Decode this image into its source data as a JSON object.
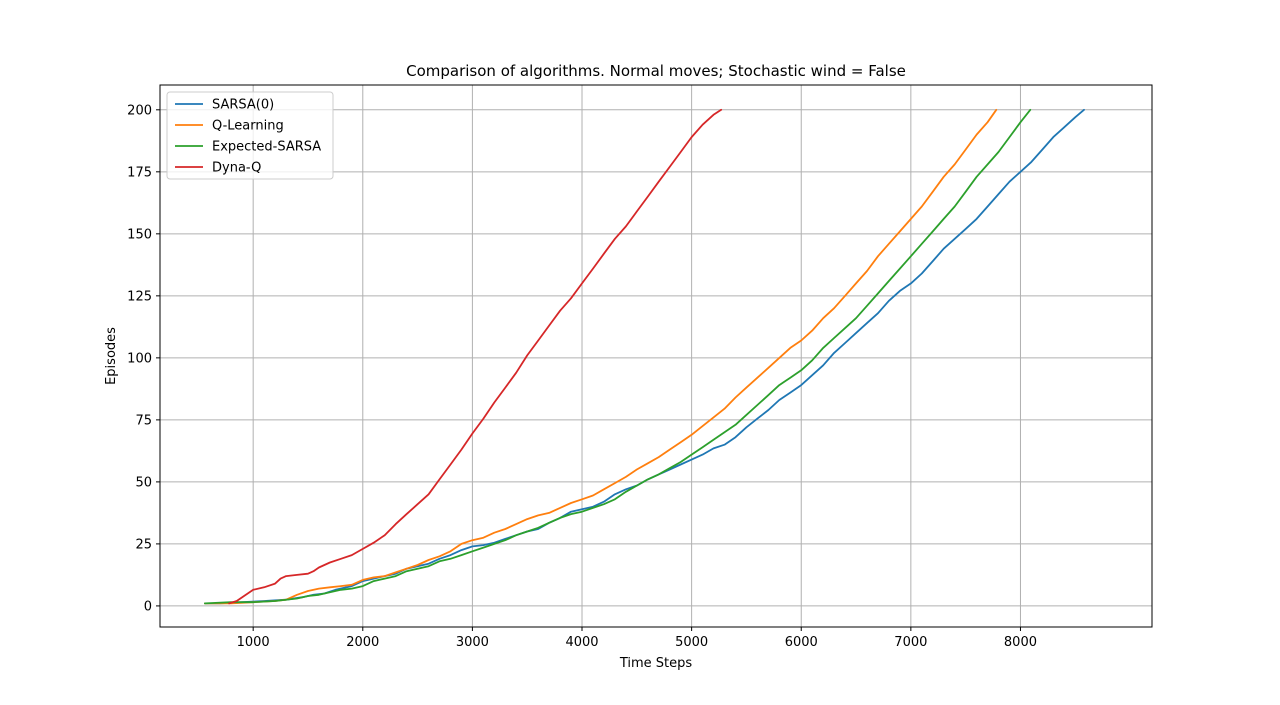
{
  "chart_data": {
    "type": "line",
    "title": "Comparison of algorithms. Normal moves; Stochastic wind = False",
    "xlabel": "Time Steps",
    "ylabel": "Episodes",
    "xlim": [
      150,
      9200
    ],
    "ylim": [
      -8.5,
      210
    ],
    "xticks": [
      1000,
      2000,
      3000,
      4000,
      5000,
      6000,
      7000,
      8000
    ],
    "xtick_labels": [
      "1000",
      "2000",
      "3000",
      "4000",
      "5000",
      "6000",
      "7000",
      "8000"
    ],
    "yticks": [
      0,
      25,
      50,
      75,
      100,
      125,
      150,
      175,
      200
    ],
    "ytick_labels": [
      "0",
      "25",
      "50",
      "75",
      "100",
      "125",
      "150",
      "175",
      "200"
    ],
    "grid": true,
    "legend_position": "top-left",
    "series": [
      {
        "name": "SARSA(0)",
        "color": "#1f77b4",
        "points": [
          [
            560,
            1
          ],
          [
            700,
            1
          ],
          [
            900,
            1.5
          ],
          [
            1100,
            2
          ],
          [
            1300,
            2.5
          ],
          [
            1450,
            3.5
          ],
          [
            1550,
            4.5
          ],
          [
            1650,
            5
          ],
          [
            1750,
            6.5
          ],
          [
            1900,
            8
          ],
          [
            2000,
            10
          ],
          [
            2100,
            11
          ],
          [
            2200,
            12
          ],
          [
            2300,
            13
          ],
          [
            2400,
            15
          ],
          [
            2500,
            16
          ],
          [
            2600,
            17
          ],
          [
            2700,
            19
          ],
          [
            2800,
            20.5
          ],
          [
            2900,
            22.5
          ],
          [
            3000,
            24
          ],
          [
            3100,
            24.5
          ],
          [
            3200,
            25.5
          ],
          [
            3300,
            27
          ],
          [
            3400,
            28.5
          ],
          [
            3500,
            30
          ],
          [
            3600,
            31
          ],
          [
            3700,
            33.5
          ],
          [
            3800,
            35.5
          ],
          [
            3900,
            38
          ],
          [
            4000,
            39
          ],
          [
            4100,
            40
          ],
          [
            4200,
            42
          ],
          [
            4300,
            45
          ],
          [
            4400,
            47
          ],
          [
            4500,
            48.5
          ],
          [
            4600,
            51
          ],
          [
            4700,
            53
          ],
          [
            4800,
            55
          ],
          [
            4900,
            57
          ],
          [
            5000,
            59
          ],
          [
            5100,
            61
          ],
          [
            5200,
            63.5
          ],
          [
            5300,
            65
          ],
          [
            5400,
            68
          ],
          [
            5500,
            72
          ],
          [
            5600,
            75.5
          ],
          [
            5700,
            79
          ],
          [
            5800,
            83
          ],
          [
            5900,
            86
          ],
          [
            6000,
            89
          ],
          [
            6100,
            93
          ],
          [
            6200,
            97
          ],
          [
            6300,
            102
          ],
          [
            6400,
            106
          ],
          [
            6500,
            110
          ],
          [
            6600,
            114
          ],
          [
            6700,
            118
          ],
          [
            6800,
            123
          ],
          [
            6900,
            127
          ],
          [
            7000,
            130
          ],
          [
            7100,
            134
          ],
          [
            7200,
            139
          ],
          [
            7300,
            144
          ],
          [
            7400,
            148
          ],
          [
            7500,
            152
          ],
          [
            7600,
            156
          ],
          [
            7700,
            161
          ],
          [
            7800,
            166
          ],
          [
            7900,
            171
          ],
          [
            8000,
            175
          ],
          [
            8100,
            179
          ],
          [
            8200,
            184
          ],
          [
            8300,
            189
          ],
          [
            8400,
            193
          ],
          [
            8500,
            197
          ],
          [
            8580,
            200
          ]
        ]
      },
      {
        "name": "Q-Learning",
        "color": "#ff7f0e",
        "points": [
          [
            560,
            1
          ],
          [
            800,
            1
          ],
          [
            1000,
            1.5
          ],
          [
            1200,
            2
          ],
          [
            1300,
            2.5
          ],
          [
            1400,
            4.5
          ],
          [
            1500,
            6
          ],
          [
            1600,
            7
          ],
          [
            1700,
            7.5
          ],
          [
            1800,
            8
          ],
          [
            1900,
            8.5
          ],
          [
            2000,
            10.5
          ],
          [
            2100,
            11.5
          ],
          [
            2200,
            12
          ],
          [
            2300,
            13.5
          ],
          [
            2400,
            15
          ],
          [
            2500,
            16.5
          ],
          [
            2600,
            18.5
          ],
          [
            2700,
            20
          ],
          [
            2800,
            22
          ],
          [
            2900,
            25
          ],
          [
            3000,
            26.5
          ],
          [
            3100,
            27.5
          ],
          [
            3200,
            29.5
          ],
          [
            3300,
            31
          ],
          [
            3400,
            33
          ],
          [
            3500,
            35
          ],
          [
            3600,
            36.5
          ],
          [
            3700,
            37.5
          ],
          [
            3800,
            39.5
          ],
          [
            3900,
            41.5
          ],
          [
            4000,
            43
          ],
          [
            4100,
            44.5
          ],
          [
            4200,
            47
          ],
          [
            4300,
            49.5
          ],
          [
            4400,
            52
          ],
          [
            4500,
            55
          ],
          [
            4600,
            57.5
          ],
          [
            4700,
            60
          ],
          [
            4800,
            63
          ],
          [
            4900,
            66
          ],
          [
            5000,
            69
          ],
          [
            5100,
            72.5
          ],
          [
            5200,
            76
          ],
          [
            5300,
            79.5
          ],
          [
            5400,
            84
          ],
          [
            5500,
            88
          ],
          [
            5600,
            92
          ],
          [
            5700,
            96
          ],
          [
            5800,
            100
          ],
          [
            5900,
            104
          ],
          [
            6000,
            107
          ],
          [
            6100,
            111
          ],
          [
            6200,
            116
          ],
          [
            6300,
            120
          ],
          [
            6400,
            125
          ],
          [
            6500,
            130
          ],
          [
            6600,
            135
          ],
          [
            6700,
            141
          ],
          [
            6800,
            146
          ],
          [
            6900,
            151
          ],
          [
            7000,
            156
          ],
          [
            7100,
            161
          ],
          [
            7200,
            167
          ],
          [
            7300,
            173
          ],
          [
            7400,
            178
          ],
          [
            7500,
            184
          ],
          [
            7600,
            190
          ],
          [
            7700,
            195
          ],
          [
            7780,
            200
          ]
        ]
      },
      {
        "name": "Expected-SARSA",
        "color": "#2ca02c",
        "points": [
          [
            560,
            1
          ],
          [
            800,
            1.5
          ],
          [
            1000,
            1.5
          ],
          [
            1200,
            2
          ],
          [
            1400,
            3
          ],
          [
            1500,
            4
          ],
          [
            1600,
            4.5
          ],
          [
            1700,
            5.5
          ],
          [
            1800,
            6.5
          ],
          [
            1900,
            7
          ],
          [
            2000,
            8
          ],
          [
            2100,
            10
          ],
          [
            2200,
            11
          ],
          [
            2300,
            12
          ],
          [
            2400,
            14
          ],
          [
            2500,
            15
          ],
          [
            2600,
            16
          ],
          [
            2700,
            18
          ],
          [
            2800,
            19
          ],
          [
            2900,
            20.5
          ],
          [
            3000,
            22
          ],
          [
            3100,
            23.5
          ],
          [
            3200,
            25
          ],
          [
            3300,
            26.5
          ],
          [
            3400,
            28.5
          ],
          [
            3500,
            30
          ],
          [
            3600,
            31.5
          ],
          [
            3700,
            33.5
          ],
          [
            3800,
            35.5
          ],
          [
            3900,
            37
          ],
          [
            4000,
            38
          ],
          [
            4100,
            39.5
          ],
          [
            4200,
            41
          ],
          [
            4300,
            43
          ],
          [
            4400,
            46
          ],
          [
            4500,
            48.5
          ],
          [
            4600,
            51
          ],
          [
            4700,
            53
          ],
          [
            4800,
            55.5
          ],
          [
            4900,
            58
          ],
          [
            5000,
            61
          ],
          [
            5100,
            64
          ],
          [
            5200,
            67
          ],
          [
            5300,
            70
          ],
          [
            5400,
            73
          ],
          [
            5500,
            77
          ],
          [
            5600,
            81
          ],
          [
            5700,
            85
          ],
          [
            5800,
            89
          ],
          [
            5900,
            92
          ],
          [
            6000,
            95
          ],
          [
            6100,
            99
          ],
          [
            6200,
            104
          ],
          [
            6300,
            108
          ],
          [
            6400,
            112
          ],
          [
            6500,
            116
          ],
          [
            6600,
            121
          ],
          [
            6700,
            126
          ],
          [
            6800,
            131
          ],
          [
            6900,
            136
          ],
          [
            7000,
            141
          ],
          [
            7100,
            146
          ],
          [
            7200,
            151
          ],
          [
            7300,
            156
          ],
          [
            7400,
            161
          ],
          [
            7500,
            167
          ],
          [
            7600,
            173
          ],
          [
            7700,
            178
          ],
          [
            7800,
            183
          ],
          [
            7900,
            189
          ],
          [
            8000,
            195
          ],
          [
            8090,
            200
          ]
        ]
      },
      {
        "name": "Dyna-Q",
        "color": "#d62728",
        "points": [
          [
            780,
            1
          ],
          [
            850,
            2
          ],
          [
            900,
            3.5
          ],
          [
            950,
            5
          ],
          [
            1000,
            6.5
          ],
          [
            1100,
            7.5
          ],
          [
            1200,
            9
          ],
          [
            1250,
            11
          ],
          [
            1300,
            12
          ],
          [
            1400,
            12.5
          ],
          [
            1500,
            13
          ],
          [
            1550,
            14
          ],
          [
            1600,
            15.5
          ],
          [
            1700,
            17.5
          ],
          [
            1800,
            19
          ],
          [
            1900,
            20.5
          ],
          [
            2000,
            23
          ],
          [
            2100,
            25.5
          ],
          [
            2200,
            28.5
          ],
          [
            2300,
            33
          ],
          [
            2400,
            37
          ],
          [
            2500,
            41
          ],
          [
            2600,
            45
          ],
          [
            2700,
            51
          ],
          [
            2800,
            57
          ],
          [
            2900,
            63
          ],
          [
            3000,
            69.5
          ],
          [
            3100,
            75.5
          ],
          [
            3200,
            82
          ],
          [
            3300,
            88
          ],
          [
            3400,
            94
          ],
          [
            3500,
            101
          ],
          [
            3600,
            107
          ],
          [
            3700,
            113
          ],
          [
            3800,
            119
          ],
          [
            3900,
            124
          ],
          [
            4000,
            130
          ],
          [
            4100,
            136
          ],
          [
            4200,
            142
          ],
          [
            4300,
            148
          ],
          [
            4400,
            153
          ],
          [
            4500,
            159
          ],
          [
            4600,
            165
          ],
          [
            4700,
            171
          ],
          [
            4800,
            177
          ],
          [
            4900,
            183
          ],
          [
            5000,
            189
          ],
          [
            5100,
            194
          ],
          [
            5200,
            198
          ],
          [
            5270,
            200
          ]
        ]
      }
    ]
  }
}
